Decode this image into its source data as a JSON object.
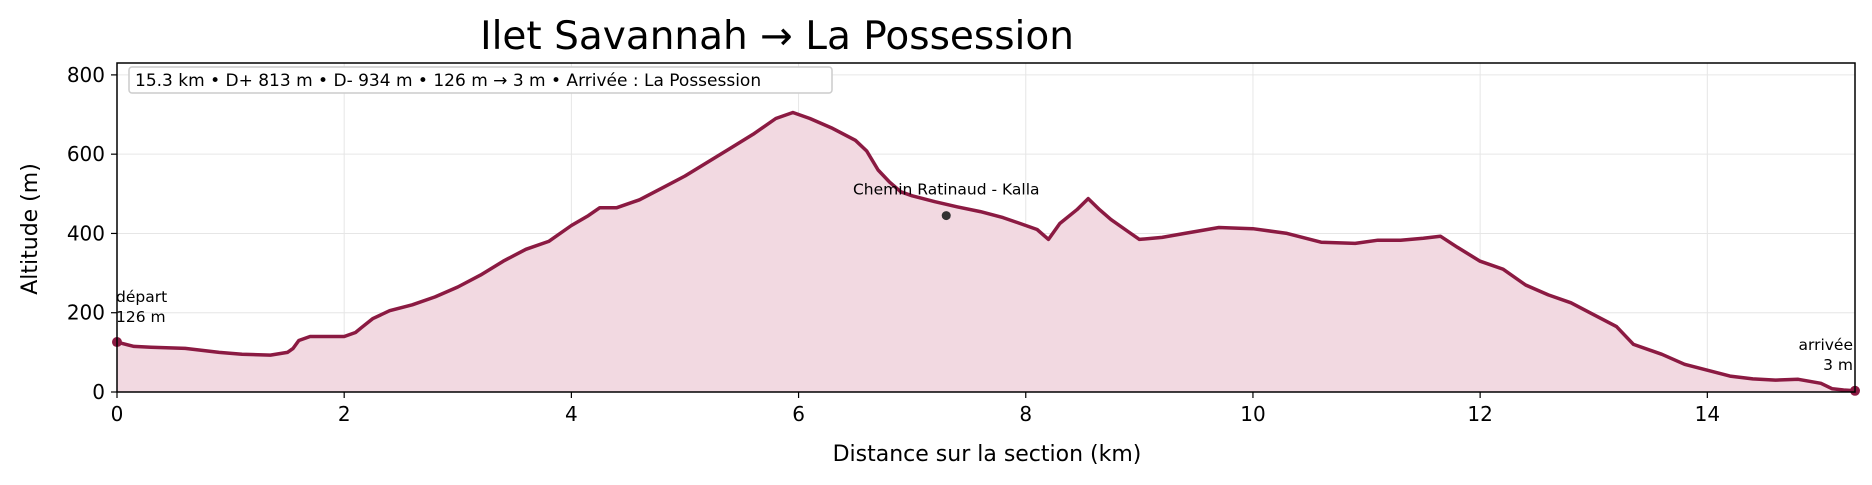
{
  "chart_data": {
    "type": "area",
    "title": "Ilet Savannah → La Possession",
    "xlabel": "Distance sur la section (km)",
    "ylabel": "Altitude (m)",
    "xlim": [
      0,
      15.3
    ],
    "ylim": [
      0,
      830
    ],
    "xticks": [
      0,
      2,
      4,
      6,
      8,
      10,
      12,
      14
    ],
    "yticks": [
      0,
      200,
      400,
      600,
      800
    ],
    "grid": true,
    "line_color": "#8b1a42",
    "fill_color": "#f2d9e1",
    "stats_box": "15.3 km • D+ 813 m • D- 934 m • 126 m → 3 m • Arrivée : La Possession",
    "start_label": "départ",
    "start_value": "126 m",
    "end_label": "arrivée",
    "end_value": "3 m",
    "poi": {
      "label": "Chemin Ratinaud - Kalla",
      "x": 7.3,
      "y": 445
    },
    "profile": {
      "x": [
        0,
        0.05,
        0.15,
        0.3,
        0.6,
        0.9,
        1.1,
        1.35,
        1.5,
        1.55,
        1.6,
        1.7,
        1.85,
        2.0,
        2.1,
        2.15,
        2.25,
        2.4,
        2.6,
        2.8,
        3.0,
        3.2,
        3.4,
        3.6,
        3.8,
        4.0,
        4.15,
        4.25,
        4.4,
        4.6,
        4.8,
        5.0,
        5.2,
        5.4,
        5.6,
        5.8,
        5.95,
        6.1,
        6.3,
        6.5,
        6.6,
        6.7,
        6.8,
        6.9,
        7.0,
        7.2,
        7.4,
        7.6,
        7.8,
        7.95,
        8.1,
        8.2,
        8.3,
        8.45,
        8.55,
        8.65,
        8.75,
        8.9,
        9.0,
        9.2,
        9.4,
        9.7,
        10.0,
        10.3,
        10.6,
        10.9,
        11.1,
        11.3,
        11.5,
        11.65,
        11.8,
        12.0,
        12.2,
        12.4,
        12.6,
        12.8,
        13.0,
        13.2,
        13.35,
        13.6,
        13.8,
        14.0,
        14.2,
        14.4,
        14.6,
        14.8,
        15.0,
        15.1,
        15.2,
        15.3
      ],
      "y": [
        126,
        122,
        115,
        113,
        110,
        100,
        95,
        93,
        100,
        110,
        130,
        140,
        140,
        140,
        150,
        162,
        185,
        205,
        220,
        240,
        265,
        295,
        330,
        360,
        380,
        420,
        445,
        465,
        465,
        485,
        515,
        545,
        580,
        615,
        650,
        690,
        705,
        690,
        665,
        635,
        608,
        560,
        530,
        505,
        495,
        480,
        467,
        455,
        440,
        425,
        410,
        385,
        425,
        460,
        488,
        460,
        435,
        405,
        385,
        390,
        400,
        415,
        412,
        400,
        378,
        375,
        383,
        383,
        388,
        393,
        365,
        330,
        310,
        270,
        245,
        225,
        195,
        165,
        120,
        95,
        70,
        55,
        40,
        33,
        30,
        32,
        22,
        8,
        5,
        3
      ]
    }
  }
}
